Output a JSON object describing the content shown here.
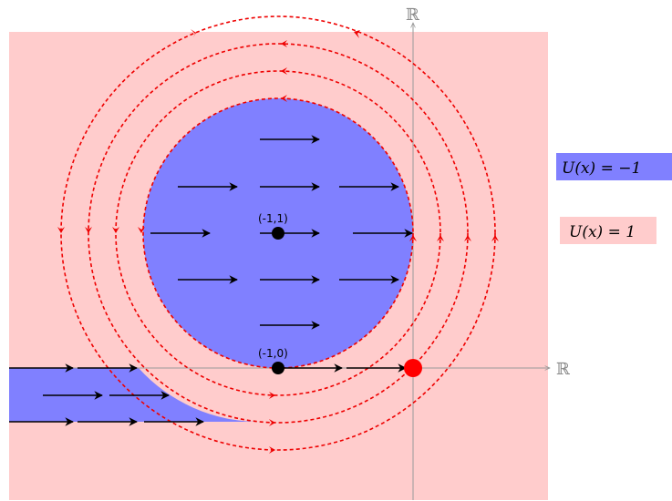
{
  "axes": {
    "x_label": "ℝ",
    "y_label": "ℝ"
  },
  "points": [
    {
      "label": "(-1,1)",
      "x": -1,
      "y": 1,
      "color": "#000000"
    },
    {
      "label": "(-1,0)",
      "x": -1,
      "y": 0,
      "color": "#000000"
    },
    {
      "x": 0,
      "y": 0,
      "color": "#ff0000"
    }
  ],
  "legend": [
    {
      "text": "U(x) = −1",
      "color": "#8080ff"
    },
    {
      "text": "U(x) = 1",
      "color": "#ffcccc"
    }
  ],
  "colors": {
    "negative_region": "#8080ff",
    "positive_region": "#ffcccc",
    "orbits": "#ee0000",
    "axes": "#9a9a9a",
    "arrows": "#000000"
  }
}
